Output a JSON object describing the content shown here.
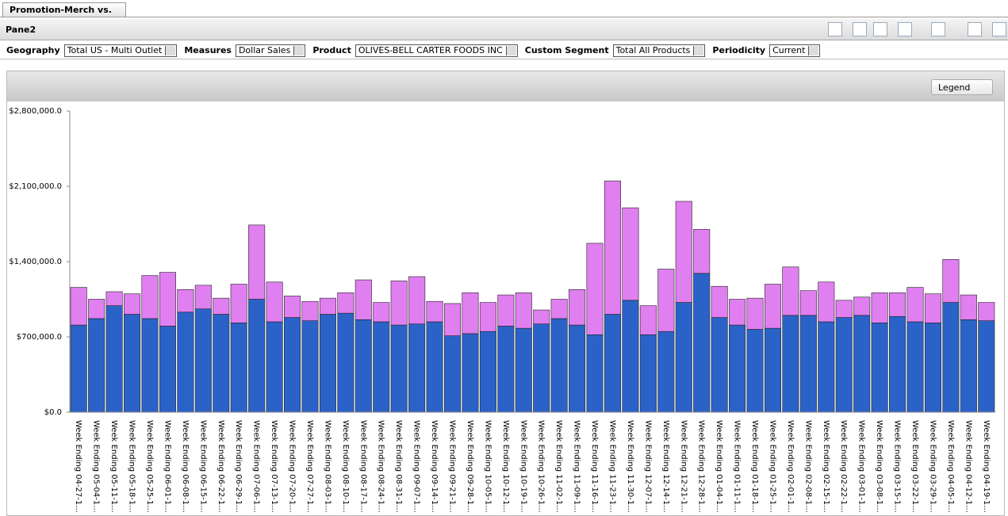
{
  "tab": "Promotion-Merch vs. No ...",
  "pane": "Pane2",
  "filters": [
    {
      "label": "Geography",
      "value": "Total US - Multi Outlet"
    },
    {
      "label": "Measures",
      "value": "Dollar Sales"
    },
    {
      "label": "Product",
      "value": "OLIVES-BELL CARTER FOODS INC"
    },
    {
      "label": "Custom Segment",
      "value": "Total All Products"
    },
    {
      "label": "Periodicity",
      "value": "Current"
    }
  ],
  "legend_button": "Legend",
  "chart_data": {
    "type": "stacked-bar",
    "categories": [
      "Week Ending 04-27-1...",
      "Week Ending 05-04-1...",
      "Week Ending 05-11-1...",
      "Week Ending 05-18-1...",
      "Week Ending 05-25-1...",
      "Week Ending 06-01-1...",
      "Week Ending 06-08-1...",
      "Week Ending 06-15-1...",
      "Week Ending 06-22-1...",
      "Week Ending 06-29-1...",
      "Week Ending 07-06-1...",
      "Week Ending 07-13-1...",
      "Week Ending 07-20-1...",
      "Week Ending 07-27-1...",
      "Week Ending 08-03-1...",
      "Week Ending 08-10-1...",
      "Week Ending 08-17-1...",
      "Week Ending 08-24-1...",
      "Week Ending 08-31-1...",
      "Week Ending 09-07-1...",
      "Week Ending 09-14-1...",
      "Week Ending 09-21-1...",
      "Week Ending 09-28-1...",
      "Week Ending 10-05-1...",
      "Week Ending 10-12-1...",
      "Week Ending 10-19-1...",
      "Week Ending 10-26-1...",
      "Week Ending 11-02-1...",
      "Week Ending 11-09-1...",
      "Week Ending 11-16-1...",
      "Week Ending 11-23-1...",
      "Week Ending 11-30-1...",
      "Week Ending 12-07-1...",
      "Week Ending 12-14-1...",
      "Week Ending 12-21-1...",
      "Week Ending 12-28-1...",
      "Week Ending 01-04-1...",
      "Week Ending 01-11-1...",
      "Week Ending 01-18-1...",
      "Week Ending 01-25-1...",
      "Week Ending 02-01-1...",
      "Week Ending 02-08-1...",
      "Week Ending 02-15-1...",
      "Week Ending 02-22-1...",
      "Week Ending 03-01-1...",
      "Week Ending 03-08-1...",
      "Week Ending 03-15-1...",
      "Week Ending 03-22-1...",
      "Week Ending 03-29-1...",
      "Week Ending 04-05-1...",
      "Week Ending 04-12-1...",
      "Week Ending 04-19-1..."
    ],
    "series": [
      {
        "color": "#2b62c8",
        "values": [
          810000,
          870000,
          990000,
          910000,
          870000,
          800000,
          930000,
          960000,
          910000,
          830000,
          1050000,
          840000,
          880000,
          850000,
          910000,
          920000,
          860000,
          840000,
          810000,
          820000,
          840000,
          710000,
          730000,
          750000,
          800000,
          780000,
          820000,
          870000,
          810000,
          720000,
          910000,
          1040000,
          720000,
          750000,
          1020000,
          1290000,
          880000,
          810000,
          770000,
          780000,
          900000,
          900000,
          840000,
          880000,
          900000,
          830000,
          890000,
          840000,
          830000,
          1020000,
          860000,
          850000
        ]
      },
      {
        "color": "#e07ff0",
        "values": [
          350000,
          180000,
          130000,
          190000,
          400000,
          500000,
          210000,
          220000,
          150000,
          360000,
          690000,
          370000,
          200000,
          180000,
          150000,
          190000,
          370000,
          180000,
          410000,
          440000,
          190000,
          300000,
          380000,
          270000,
          290000,
          330000,
          130000,
          180000,
          330000,
          850000,
          1240000,
          860000,
          270000,
          580000,
          940000,
          410000,
          290000,
          240000,
          290000,
          410000,
          450000,
          230000,
          370000,
          160000,
          170000,
          280000,
          220000,
          320000,
          270000,
          400000,
          230000,
          170000
        ]
      }
    ],
    "ylim": [
      0,
      2800000
    ],
    "yticks": [
      {
        "value": 0,
        "label": "$0.0"
      },
      {
        "value": 700000,
        "label": "$700,000.0"
      },
      {
        "value": 1400000,
        "label": "$1,400,000.0"
      },
      {
        "value": 2100000,
        "label": "$2,100,000.0"
      },
      {
        "value": 2800000,
        "label": "$2,800,000.0"
      }
    ]
  }
}
